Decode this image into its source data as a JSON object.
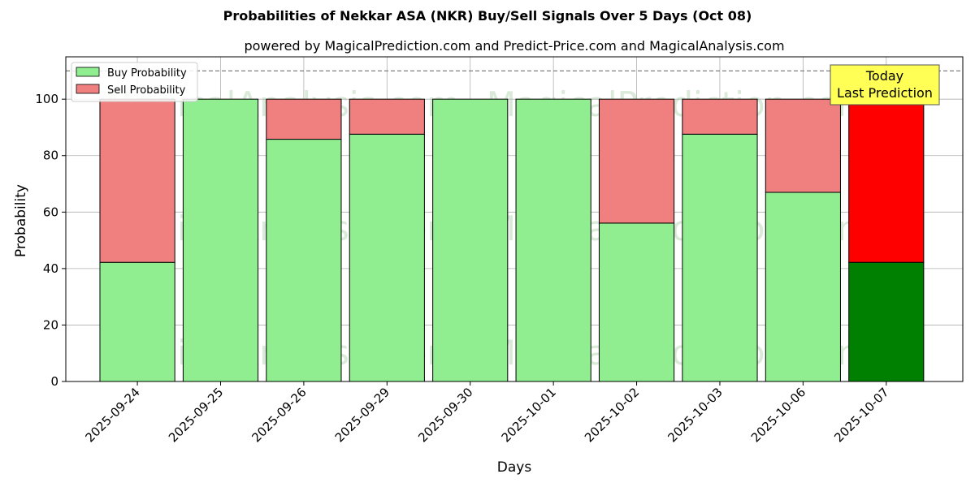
{
  "chart_data": {
    "type": "bar",
    "stacked": true,
    "title": "Probabilities of Nekkar ASA (NKR) Buy/Sell Signals Over 5 Days (Oct 08)",
    "subtitle": "powered by MagicalPrediction.com and Predict-Price.com and MagicalAnalysis.com",
    "xlabel": "Days",
    "ylabel": "Probability",
    "ylim": [
      0,
      115
    ],
    "yticks": [
      0,
      20,
      40,
      60,
      80,
      100
    ],
    "reference_line": 110,
    "grid": true,
    "legend_position": "top-left",
    "categories": [
      "2025-09-24",
      "2025-09-25",
      "2025-09-26",
      "2025-09-29",
      "2025-09-30",
      "2025-10-01",
      "2025-10-02",
      "2025-10-03",
      "2025-10-06",
      "2025-10-07"
    ],
    "series": [
      {
        "name": "Buy Probability",
        "color": "#90ee90",
        "highlight_color": "#008000",
        "values": [
          42.2,
          100,
          85.8,
          87.6,
          100,
          100,
          56.1,
          87.6,
          67.0,
          42.2
        ]
      },
      {
        "name": "Sell Probability",
        "color": "#f08080",
        "highlight_color": "#ff0000",
        "values": [
          57.8,
          0,
          14.2,
          12.4,
          0,
          0,
          43.9,
          12.4,
          33.0,
          57.8
        ]
      }
    ],
    "highlight_index": 9,
    "annotation": {
      "lines": [
        "Today",
        "Last Prediction"
      ],
      "background": "#ffff55"
    },
    "watermarks": [
      "MagicalAnalysis.com",
      "MagicalPrediction.com"
    ]
  }
}
